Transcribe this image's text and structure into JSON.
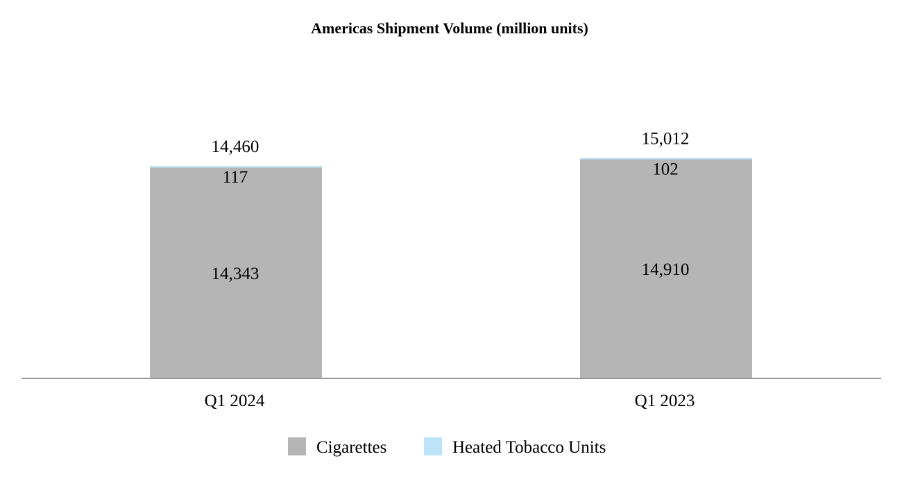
{
  "chart_data": {
    "type": "bar",
    "stacked": true,
    "title": "Americas Shipment Volume (million units)",
    "xlabel": "",
    "ylabel": "",
    "categories": [
      "Q1 2024",
      "Q1 2023"
    ],
    "series": [
      {
        "name": "Cigarettes",
        "color": "#b5b5b5",
        "values": [
          14343,
          14910
        ],
        "labels": [
          "14,343",
          "14,910"
        ]
      },
      {
        "name": "Heated Tobacco Units",
        "color": "#bde3f8",
        "values": [
          117,
          102
        ],
        "labels": [
          "117",
          "102"
        ]
      }
    ],
    "totals": [
      14460,
      15012
    ],
    "total_labels": [
      "14,460",
      "15,012"
    ],
    "ylim": [
      0,
      21500
    ],
    "grid": false,
    "legend": "bottom-center"
  }
}
